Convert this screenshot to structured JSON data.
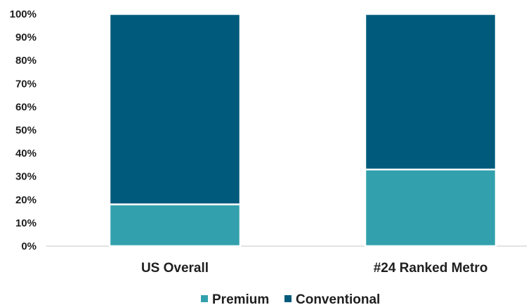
{
  "chart_data": {
    "type": "bar",
    "stacked": true,
    "categories": [
      "US Overall",
      "#24 Ranked Metro"
    ],
    "series": [
      {
        "name": "Premium",
        "values": [
          18,
          33
        ],
        "color": "#33a1ad"
      },
      {
        "name": "Conventional",
        "values": [
          82,
          67
        ],
        "color": "#005a7c"
      }
    ],
    "yticks": [
      "0%",
      "10%",
      "20%",
      "30%",
      "40%",
      "50%",
      "60%",
      "70%",
      "80%",
      "90%",
      "100%"
    ],
    "ylim": [
      0,
      100
    ],
    "legend_position": "bottom",
    "grid": false
  }
}
